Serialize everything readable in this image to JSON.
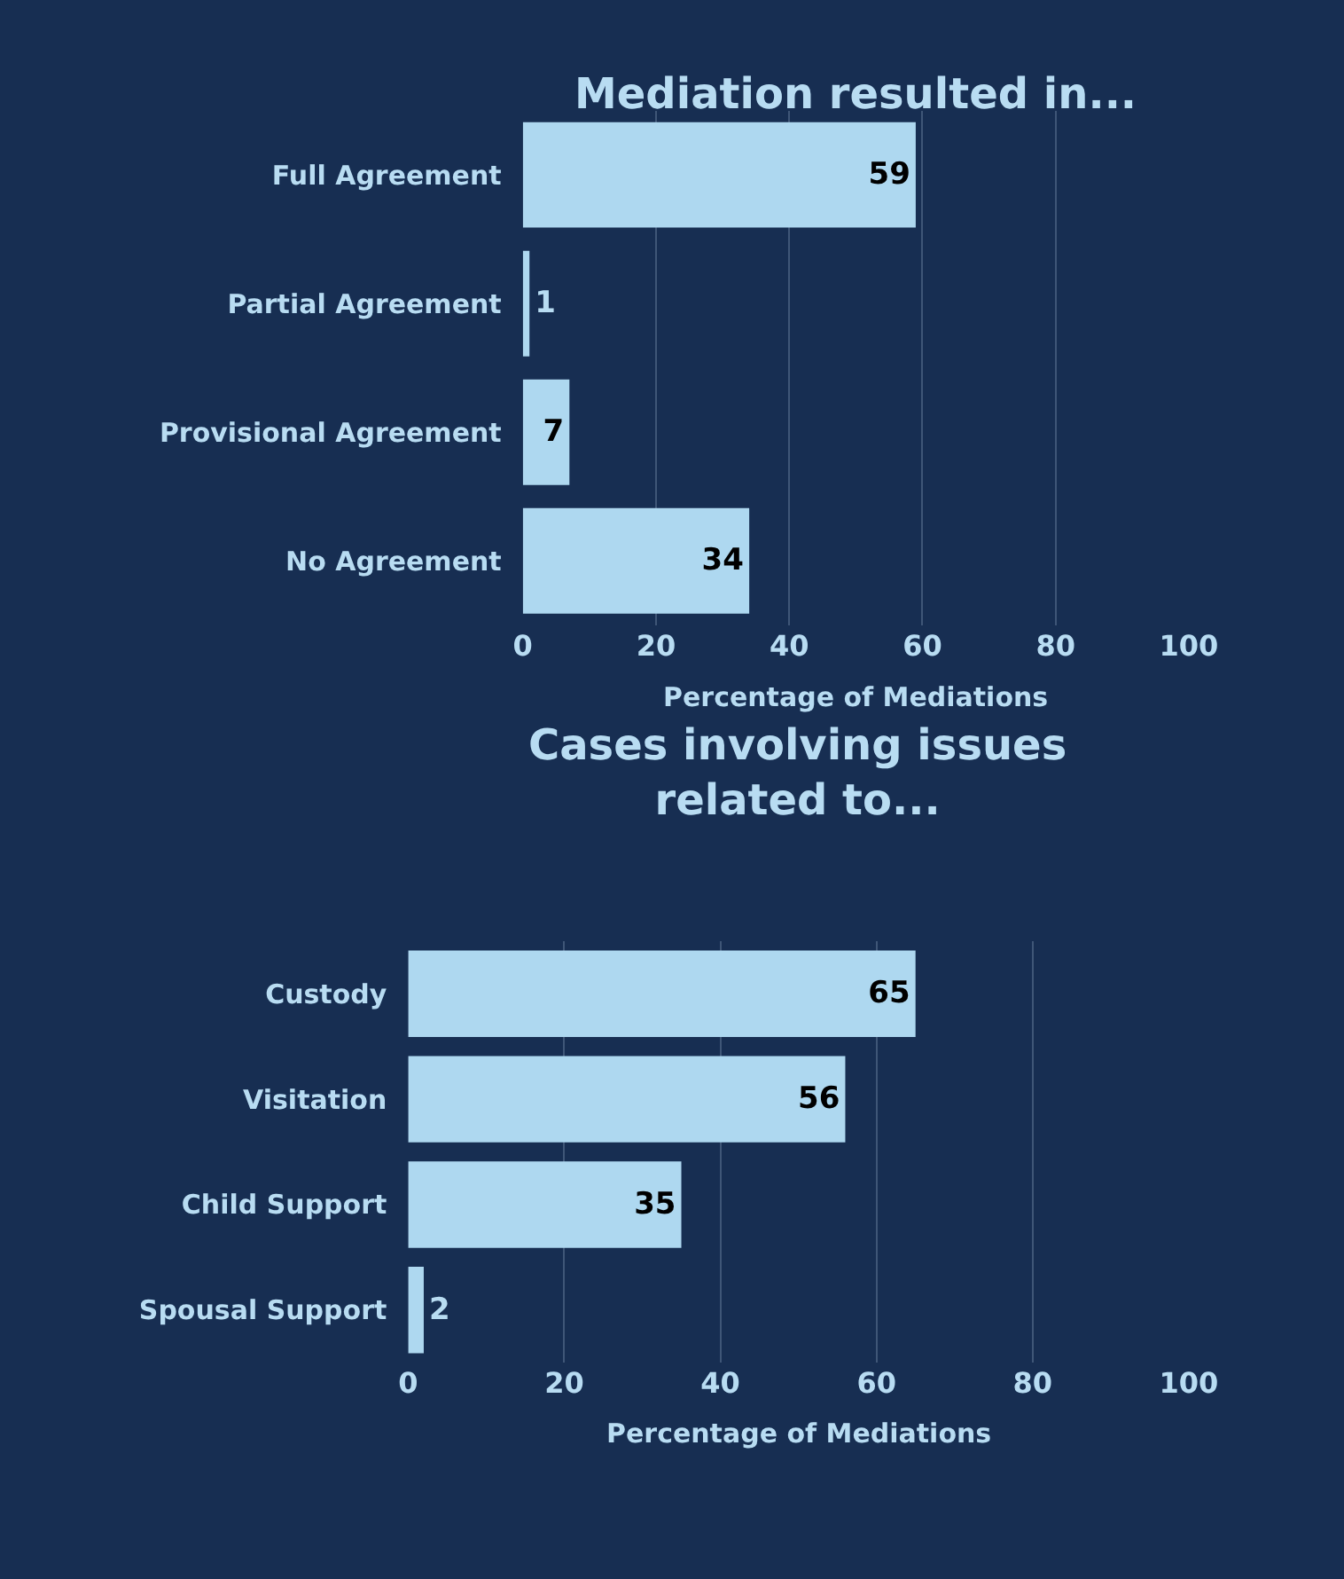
{
  "chart_data": [
    {
      "type": "bar",
      "orientation": "horizontal",
      "title": "Mediation resulted in...",
      "xlabel": "Percentage of Mediations",
      "categories": [
        "Full Agreement",
        "Partial Agreement",
        "Provisional Agreement",
        "No Agreement"
      ],
      "values": [
        59,
        1,
        7,
        34
      ],
      "color": "#aed8f0",
      "xlim": [
        0,
        100
      ],
      "xticks": [
        0,
        20,
        40,
        60,
        80,
        100
      ],
      "grid": "x",
      "data_labels": true
    },
    {
      "type": "bar",
      "orientation": "horizontal",
      "title": "Cases involving issues related to...",
      "xlabel": "Percentage of Mediations",
      "categories": [
        "Custody",
        "Visitation",
        "Child Support",
        "Spousal Support"
      ],
      "values": [
        65,
        56,
        35,
        2
      ],
      "color": "#aed8f0",
      "xlim": [
        0,
        100
      ],
      "xticks": [
        0,
        20,
        40,
        60,
        80,
        100
      ],
      "grid": "x",
      "data_labels": true
    }
  ]
}
